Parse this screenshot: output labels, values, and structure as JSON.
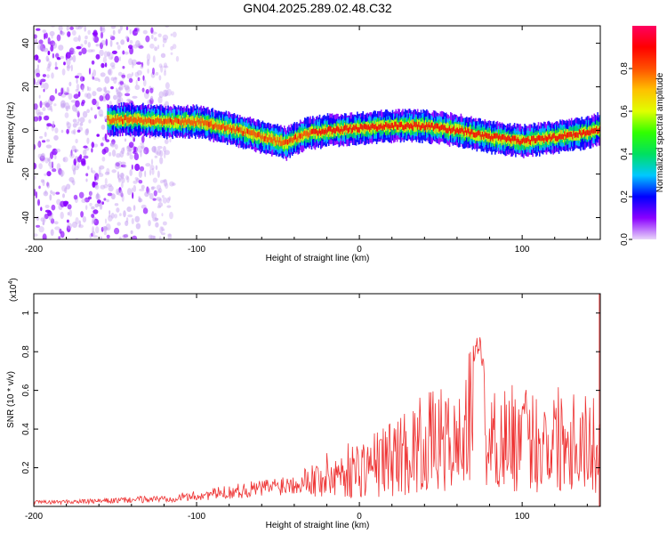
{
  "figure": {
    "title": "GN04.2025.289.02.48.C32"
  },
  "chart_data": [
    {
      "type": "heatmap",
      "title": "GN04.2025.289.02.48.C32",
      "xlabel": "Height of straight line (km)",
      "ylabel": "Frequency (Hz)",
      "xlim": [
        -200,
        148
      ],
      "ylim": [
        -50,
        48
      ],
      "x_ticks": [
        -200,
        -100,
        0,
        100
      ],
      "x_tick_labels": [
        "-200",
        "-100",
        "0",
        "100"
      ],
      "y_ticks": [
        -40,
        -20,
        0,
        20,
        40
      ],
      "y_tick_labels": [
        "-40",
        "-20",
        "0",
        "20",
        "40"
      ],
      "colorbar": {
        "label": "Normalized spectral amplitude",
        "range": [
          0,
          1
        ],
        "ticks": [
          0,
          0.2,
          0.4,
          0.6,
          0.8
        ],
        "tick_labels": [
          "0.0",
          "0.2",
          "0.4",
          "0.6",
          "0.8"
        ],
        "colors": [
          "#e9d5f9",
          "#8a00ff",
          "#0000ff",
          "#00c8ff",
          "#00e060",
          "#30ff00",
          "#e0ff00",
          "#ffc000",
          "#ff5000",
          "#ff0000",
          "#ff0060"
        ]
      },
      "ridge_centerline": {
        "x": [
          -155,
          -140,
          -120,
          -100,
          -80,
          -60,
          -45,
          -35,
          -20,
          0,
          20,
          40,
          60,
          80,
          100,
          120,
          140,
          148
        ],
        "y": [
          5,
          5,
          4,
          4,
          1,
          -3,
          -6,
          -2,
          0,
          1,
          2,
          2,
          0,
          -3,
          -5,
          -3,
          -1,
          1
        ]
      },
      "noise_region_x": [
        -200,
        -140
      ]
    },
    {
      "type": "line",
      "title": "",
      "xlabel": "Height of straight line (km)",
      "ylabel": "SNR (10 * v/v)",
      "y_multiplier": "(x10",
      "y_multiplier_exp": "4",
      "y_multiplier_close": ")",
      "xlim": [
        -200,
        148
      ],
      "ylim": [
        0,
        1.1
      ],
      "x_ticks": [
        -200,
        -100,
        0,
        100
      ],
      "x_tick_labels": [
        "-200",
        "-100",
        "0",
        "100"
      ],
      "y_ticks": [
        0.2,
        0.4,
        0.6,
        0.8,
        1.0
      ],
      "y_tick_labels": [
        "0.2",
        "0.4",
        "0.6",
        "0.8",
        "1"
      ],
      "line_color": "#ee3333",
      "envelope": {
        "x": [
          -200,
          -160,
          -140,
          -120,
          -100,
          -80,
          -60,
          -40,
          -30,
          -20,
          -10,
          0,
          10,
          20,
          30,
          40,
          50,
          60,
          70,
          73,
          76,
          80,
          90,
          100,
          110,
          120,
          130,
          140,
          148
        ],
        "y": [
          0.03,
          0.04,
          0.05,
          0.06,
          0.08,
          0.11,
          0.14,
          0.18,
          0.22,
          0.26,
          0.3,
          0.33,
          0.37,
          0.43,
          0.48,
          0.55,
          0.57,
          0.52,
          0.82,
          0.93,
          0.78,
          0.55,
          0.6,
          0.58,
          0.56,
          0.6,
          0.62,
          0.55,
          0.5
        ]
      },
      "highlight_x": 147
    }
  ]
}
